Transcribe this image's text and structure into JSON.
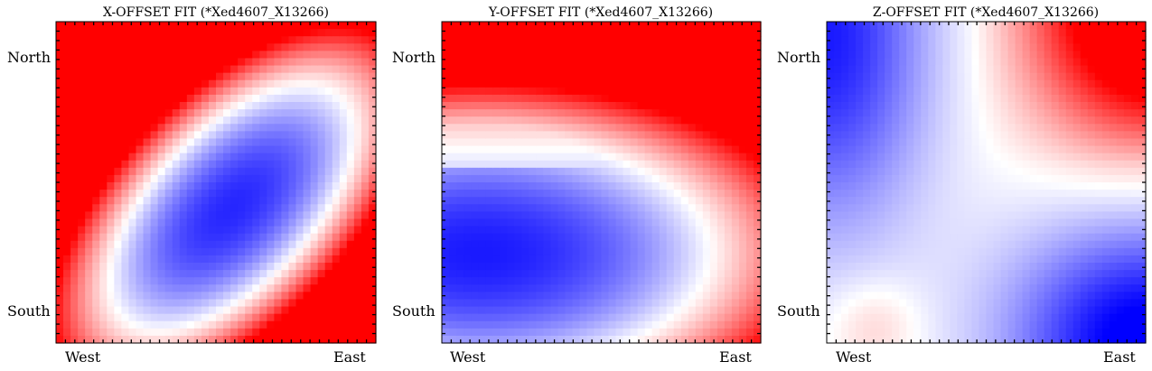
{
  "chart_data": [
    {
      "type": "heatmap",
      "title": "X-OFFSET FIT (*Xed4607_X13266)",
      "x_tick_labels": [
        "West",
        "East"
      ],
      "y_tick_labels": [
        "North",
        "South"
      ],
      "colormap": "bwr",
      "colors": {
        "low": "#0000ff",
        "mid": "#ffffff",
        "high": "#ff0000"
      },
      "grid": false,
      "field_description_points": [
        {
          "x": 0.55,
          "y": 0.58,
          "value": -1.0
        },
        {
          "x": 0.0,
          "y": 1.0,
          "value": 1.0
        },
        {
          "x": 1.0,
          "y": 0.0,
          "value": 0.85
        }
      ]
    },
    {
      "type": "heatmap",
      "title": "Y-OFFSET FIT (*Xed4607_X13266)",
      "x_tick_labels": [
        "West",
        "East"
      ],
      "y_tick_labels": [
        "North",
        "South"
      ],
      "colormap": "bwr",
      "colors": {
        "low": "#0000ff",
        "mid": "#ffffff",
        "high": "#ff0000"
      },
      "grid": false,
      "field_description_points": [
        {
          "x": 0.12,
          "y": 0.25,
          "value": -1.0
        },
        {
          "x": 0.5,
          "y": 1.0,
          "value": 1.0
        },
        {
          "x": 1.0,
          "y": 0.0,
          "value": 0.9
        }
      ]
    },
    {
      "type": "heatmap",
      "title": "Z-OFFSET FIT (*Xed4607_X13266)",
      "x_tick_labels": [
        "West",
        "East"
      ],
      "y_tick_labels": [
        "North",
        "South"
      ],
      "colormap": "bwr",
      "colors": {
        "low": "#0000ff",
        "mid": "#ffffff",
        "high": "#ff0000"
      },
      "grid": false,
      "field_description_points": [
        {
          "x": 0.0,
          "y": 1.0,
          "value": -0.8
        },
        {
          "x": 1.0,
          "y": 1.0,
          "value": 1.0
        },
        {
          "x": 1.0,
          "y": 0.0,
          "value": -1.0
        },
        {
          "x": 0.15,
          "y": 0.05,
          "value": 0.2
        }
      ]
    }
  ]
}
